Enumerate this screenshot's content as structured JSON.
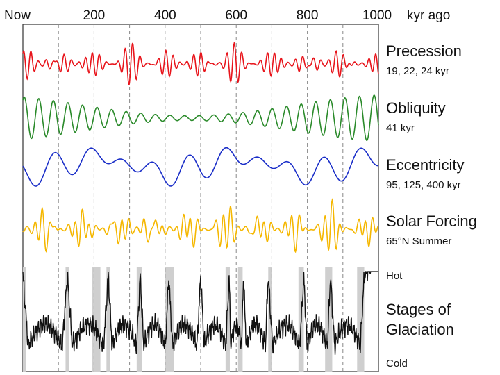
{
  "chart_data": {
    "type": "line",
    "title": "",
    "xlabel": "kyr ago",
    "x_ticks": [
      "Now",
      "200",
      "400",
      "600",
      "800",
      "1000"
    ],
    "x_tick_values": [
      0,
      200,
      400,
      600,
      800,
      1000
    ],
    "xlim": [
      0,
      1000
    ],
    "grid_x_interval": 100,
    "series": [
      {
        "name": "Precession",
        "subtitle": "19, 22, 24 kyr",
        "color": "#e8141b",
        "periods_kyr": [
          19,
          22,
          24
        ],
        "weights": [
          1.0,
          0.8,
          0.6
        ],
        "envelope_period_kyr": 100
      },
      {
        "name": "Obliquity",
        "subtitle": "41 kyr",
        "color": "#2a8a2a",
        "periods_kyr": [
          41
        ],
        "weights": [
          1.0
        ],
        "envelope_period_kyr": 1200
      },
      {
        "name": "Eccentricity",
        "subtitle": "95, 125, 400 kyr",
        "color": "#1a2ec8",
        "periods_kyr": [
          95,
          125,
          400
        ],
        "weights": [
          0.5,
          0.35,
          0.45
        ],
        "envelope_period_kyr": 0
      },
      {
        "name": "Solar Forcing",
        "subtitle": "65°N Summer",
        "color": "#f5b700",
        "periods_kyr": [
          19,
          22,
          24,
          41
        ],
        "weights": [
          0.9,
          0.7,
          0.5,
          0.6
        ],
        "envelope_period_kyr": 100
      }
    ],
    "glaciation": {
      "name": "Stages of Glaciation",
      "hot_label": "Hot",
      "cold_label": "Cold",
      "color": "#111111",
      "shade_color": "#cfcfcf",
      "warm_peaks_kyr": [
        0,
        125,
        240,
        330,
        410,
        500,
        580,
        620,
        690,
        790,
        865,
        960
      ],
      "interglacial_bands_kyr": [
        [
          0,
          8
        ],
        [
          120,
          130
        ],
        [
          195,
          218
        ],
        [
          235,
          245
        ],
        [
          320,
          335
        ],
        [
          400,
          425
        ],
        [
          570,
          582
        ],
        [
          605,
          618
        ],
        [
          690,
          700
        ],
        [
          775,
          790
        ],
        [
          850,
          870
        ],
        [
          940,
          960
        ]
      ]
    }
  },
  "labels": {
    "precession_title": "Precession",
    "precession_sub": "19, 22, 24 kyr",
    "obliquity_title": "Obliquity",
    "obliquity_sub": "41 kyr",
    "eccentricity_title": "Eccentricity",
    "eccentricity_sub": "95, 125, 400 kyr",
    "solar_title": "Solar Forcing",
    "solar_sub": "65°N Summer",
    "hot": "Hot",
    "glaciation_title_1": "Stages of",
    "glaciation_title_2": "Glaciation",
    "cold": "Cold",
    "axis_unit": "kyr ago"
  }
}
